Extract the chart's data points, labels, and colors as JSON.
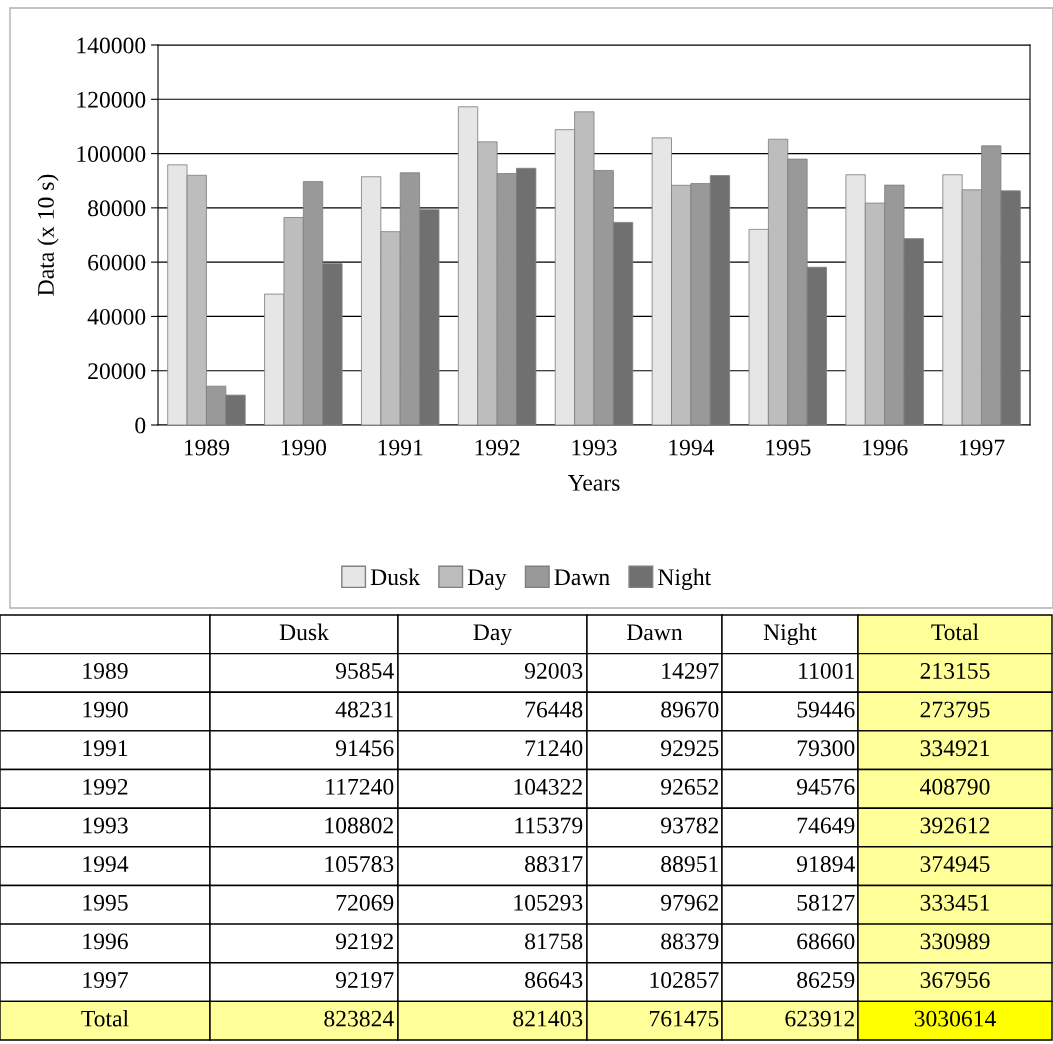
{
  "chart_data": {
    "type": "bar",
    "xlabel": "Years",
    "ylabel": "Data (x 10 s)",
    "categories": [
      "1989",
      "1990",
      "1991",
      "1992",
      "1993",
      "1994",
      "1995",
      "1996",
      "1997"
    ],
    "series": [
      {
        "name": "Dusk",
        "color": "#e6e6e6",
        "values": [
          95854,
          48231,
          91456,
          117240,
          108802,
          105783,
          72069,
          92192,
          92197
        ]
      },
      {
        "name": "Day",
        "color": "#bdbdbd",
        "values": [
          92003,
          76448,
          71240,
          104322,
          115379,
          88317,
          105293,
          81758,
          86643
        ]
      },
      {
        "name": "Dawn",
        "color": "#999999",
        "values": [
          14297,
          89670,
          92925,
          92652,
          93782,
          88951,
          97962,
          88379,
          102857
        ]
      },
      {
        "name": "Night",
        "color": "#707070",
        "values": [
          11001,
          59446,
          79300,
          94576,
          74649,
          91894,
          58127,
          68660,
          86259
        ]
      }
    ],
    "ylim": [
      0,
      140000
    ],
    "yticks": [
      0,
      20000,
      40000,
      60000,
      80000,
      100000,
      120000,
      140000
    ],
    "grid": "y",
    "legend": "bottom",
    "annotations": [
      "Total",
      "95854",
      "92003",
      "14297",
      "11001",
      "213155",
      "48231",
      "76448",
      "89670",
      "59446",
      "273795",
      "91456",
      "71240",
      "92925",
      "79300",
      "334921",
      "117240",
      "104322",
      "92652",
      "94576",
      "408790",
      "108802",
      "115379",
      "93782",
      "74649",
      "392612",
      "105783",
      "88317",
      "88951",
      "91894",
      "374945",
      "72069",
      "105293",
      "97962",
      "58127",
      "333451",
      "92192",
      "81758",
      "88379",
      "68660",
      "330989",
      "92197",
      "86643",
      "102857",
      "86259",
      "367956",
      "823824",
      "821403",
      "761475",
      "623912",
      "3030614"
    ]
  }
}
